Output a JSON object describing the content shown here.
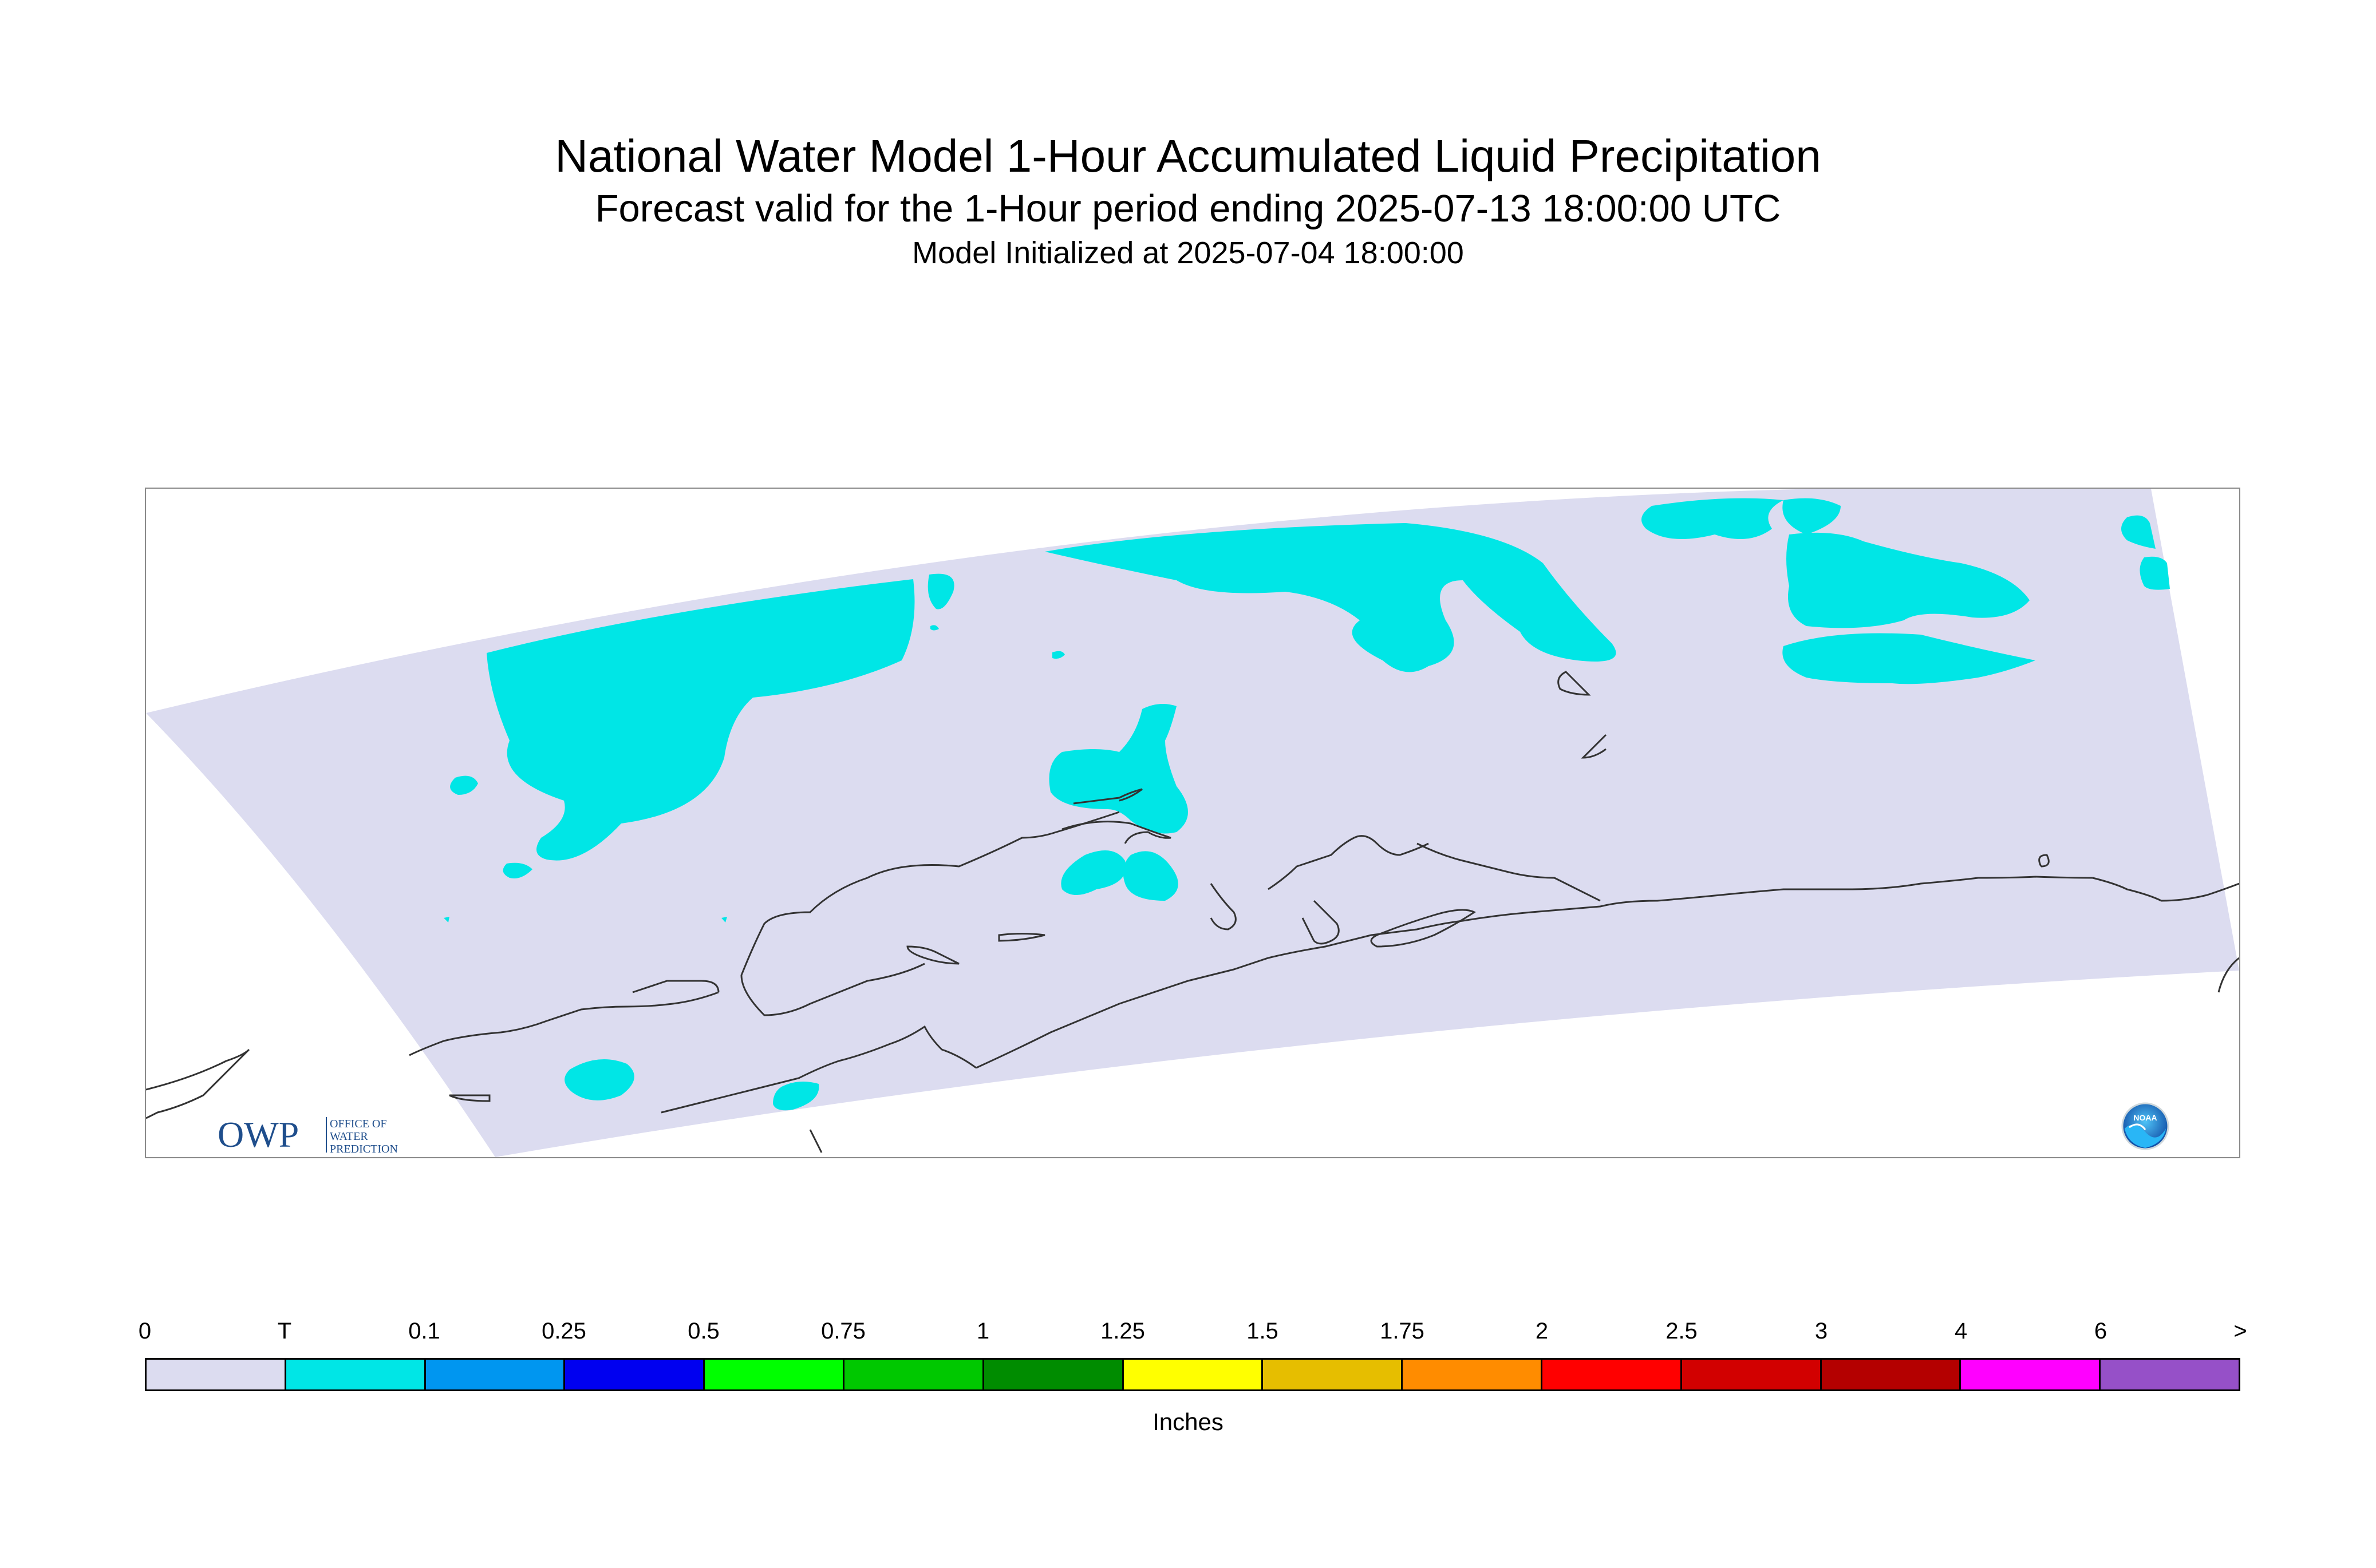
{
  "header": {
    "title": "National Water Model 1-Hour Accumulated Liquid Precipitation",
    "subtitle": "Forecast valid for the 1-Hour period ending 2025-07-13 18:00:00 UTC",
    "init_line": "Model Initialized at 2025-07-04 18:00:00"
  },
  "map": {
    "domain_fill_color": "#dcdcf0",
    "precip_trace_color": "#00e6e6",
    "coastline_color": "#333333",
    "frame_color": "#8a8a8a"
  },
  "logos": {
    "owp": {
      "letters": "OWP",
      "line1": "OFFICE OF",
      "line2": "WATER",
      "line3": "PREDICTION",
      "color": "#1f4e8c"
    },
    "noaa": {
      "text": "NOAA",
      "icon": "noaa-seal-icon"
    }
  },
  "legend": {
    "unit": "Inches",
    "tick_labels": [
      "0",
      "T",
      "0.1",
      "0.25",
      "0.5",
      "0.75",
      "1",
      "1.25",
      "1.5",
      "1.75",
      "2",
      "2.5",
      "3",
      "4",
      "6",
      ">"
    ],
    "colors": [
      "#dcdcf0",
      "#00e6e6",
      "#0096f0",
      "#0000f0",
      "#00ff00",
      "#00c800",
      "#008c00",
      "#ffff00",
      "#e6be00",
      "#ff8c00",
      "#ff0000",
      "#d20000",
      "#b40000",
      "#ff00ff",
      "#9650c8"
    ]
  }
}
